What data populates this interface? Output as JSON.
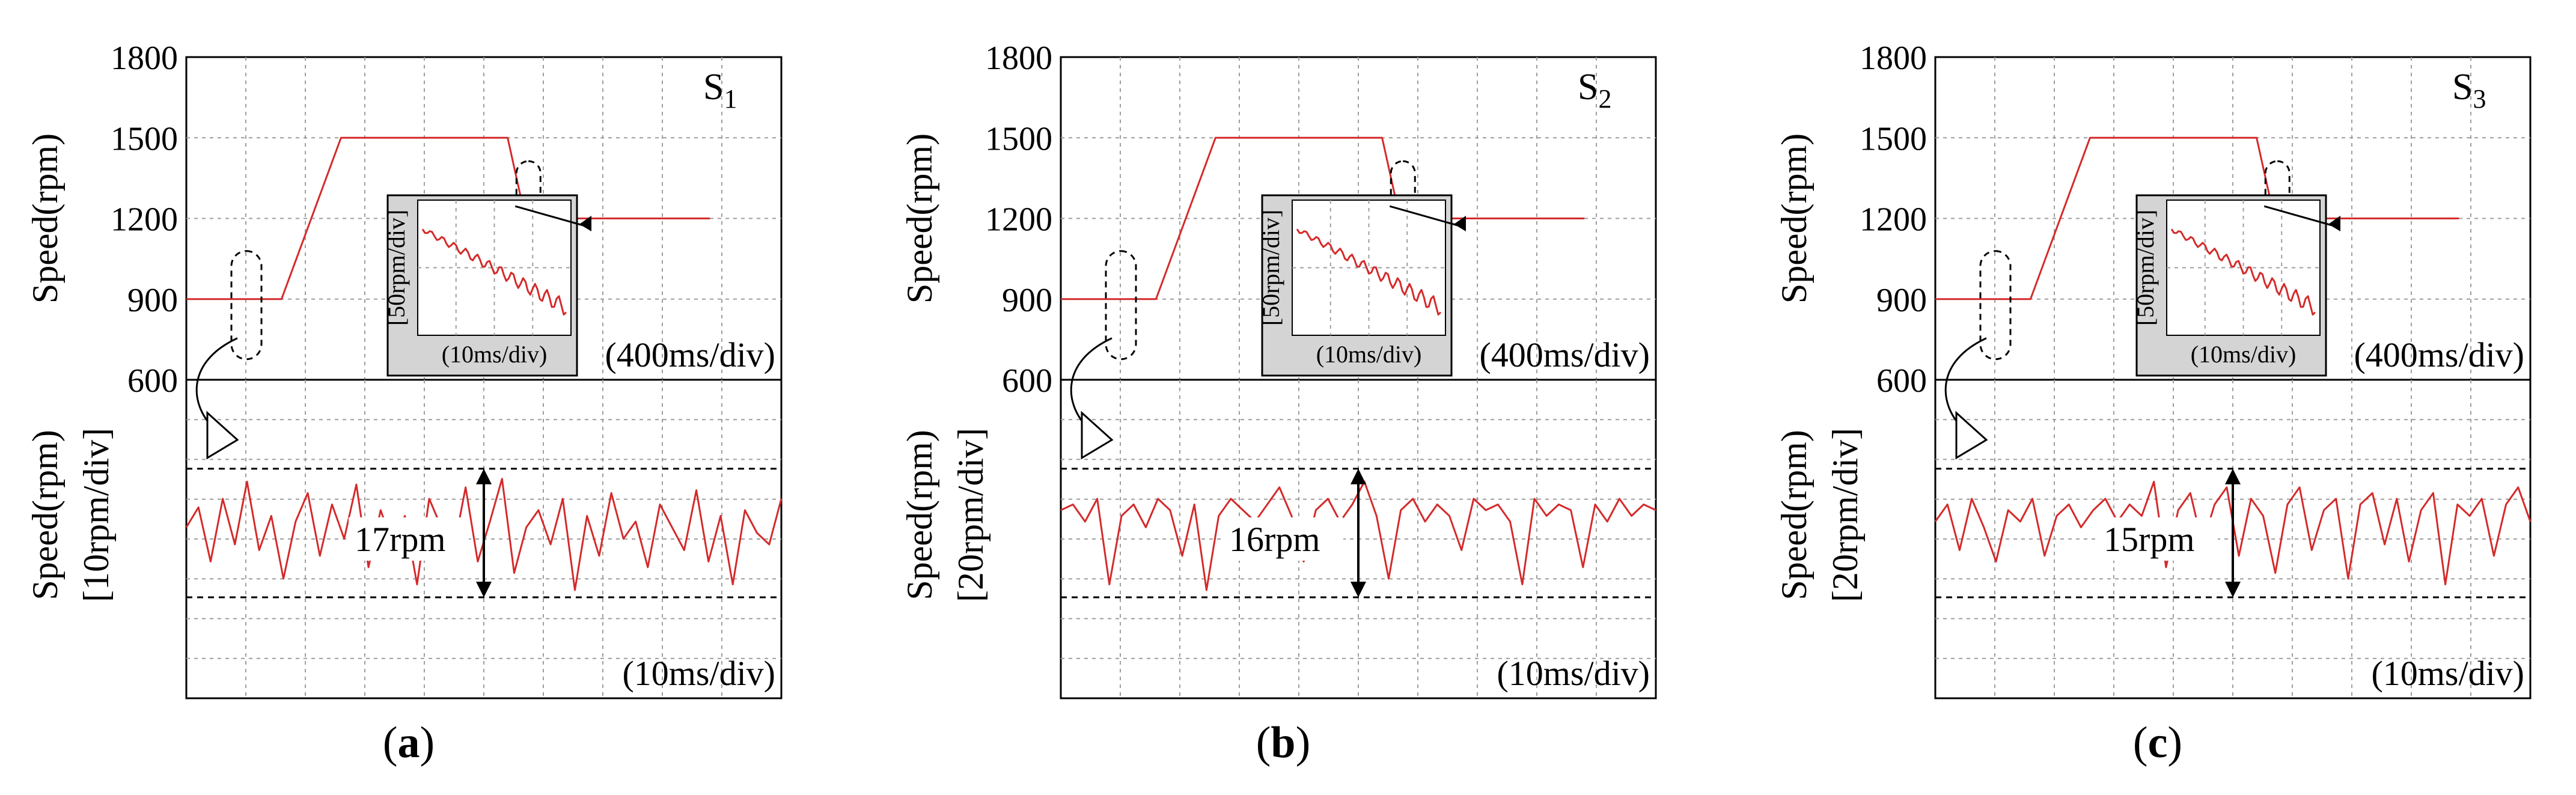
{
  "chart_data": [
    {
      "panel": "a",
      "caption_letter": "a",
      "sensor_label": "S",
      "sensor_sub": "1",
      "type": "line",
      "top": {
        "ylabel": "Speed(rpm)",
        "yticks": [
          "1800",
          "1500",
          "1200",
          "900",
          "600"
        ],
        "ylim": [
          600,
          1800
        ],
        "time_scale": "(400ms/div)",
        "segments": [
          [
            0,
            900
          ],
          [
            1.6,
            900
          ],
          [
            2.6,
            1500
          ],
          [
            5.4,
            1500
          ],
          [
            5.7,
            1200
          ],
          [
            8.8,
            1200
          ]
        ],
        "inset_ylabel": "[50rpm/div]",
        "inset_xlabel": "(10ms/div)"
      },
      "bottom": {
        "ylabel_1": "Speed(rpm)",
        "ylabel_2": "[10rpm/div]",
        "time_scale": "(10ms/div)",
        "ripple_label": "17rpm",
        "ripple_rpm": 17,
        "trace": [
          0.1,
          0.45,
          -0.5,
          0.6,
          -0.2,
          0.9,
          -0.3,
          0.3,
          -0.8,
          0.2,
          0.7,
          -0.4,
          0.5,
          -0.1,
          0.85,
          -0.6,
          0.4,
          -0.2,
          0.3,
          -0.9,
          0.6,
          0.1,
          -0.3,
          0.8,
          -0.5,
          0.2,
          0.95,
          -0.7,
          0.1,
          0.4,
          -0.2,
          0.6,
          -1.0,
          0.3,
          -0.4,
          0.7,
          -0.1,
          0.2,
          -0.6,
          0.5,
          0.1,
          -0.3,
          0.75,
          -0.5,
          0.3,
          -0.9,
          0.4,
          0.0,
          -0.2,
          0.6
        ]
      }
    },
    {
      "panel": "b",
      "caption_letter": "b",
      "sensor_label": "S",
      "sensor_sub": "2",
      "type": "line",
      "top": {
        "ylabel": "Speed(rpm)",
        "yticks": [
          "1800",
          "1500",
          "1200",
          "900",
          "600"
        ],
        "ylim": [
          600,
          1800
        ],
        "time_scale": "(400ms/div)",
        "segments": [
          [
            0,
            900
          ],
          [
            1.6,
            900
          ],
          [
            2.6,
            1500
          ],
          [
            5.4,
            1500
          ],
          [
            5.7,
            1200
          ],
          [
            8.8,
            1200
          ]
        ],
        "inset_ylabel": "[50rpm/div]",
        "inset_xlabel": "(10ms/div)"
      },
      "bottom": {
        "ylabel_1": "Speed(rpm)",
        "ylabel_2": "[20rpm/div]",
        "time_scale": "(10ms/div)",
        "ripple_label": "16rpm",
        "ripple_rpm": 16,
        "trace": [
          0.4,
          0.5,
          0.2,
          0.6,
          -0.9,
          0.3,
          0.5,
          0.1,
          0.6,
          0.4,
          -0.4,
          0.5,
          -1.0,
          0.3,
          0.6,
          0.4,
          0.2,
          0.5,
          0.8,
          0.3,
          -0.5,
          0.4,
          0.6,
          0.2,
          0.5,
          0.9,
          0.3,
          -0.8,
          0.4,
          0.6,
          0.2,
          0.5,
          0.3,
          -0.3,
          0.6,
          0.4,
          0.5,
          0.2,
          -0.9,
          0.6,
          0.3,
          0.5,
          0.4,
          -0.6,
          0.5,
          0.2,
          0.6,
          0.3,
          0.5,
          0.4
        ]
      }
    },
    {
      "panel": "c",
      "caption_letter": "c",
      "sensor_label": "S",
      "sensor_sub": "3",
      "type": "line",
      "top": {
        "ylabel": "Speed(rpm)",
        "yticks": [
          "1800",
          "1500",
          "1200",
          "900",
          "600"
        ],
        "ylim": [
          600,
          1800
        ],
        "time_scale": "(400ms/div)",
        "segments": [
          [
            0,
            900
          ],
          [
            1.6,
            900
          ],
          [
            2.6,
            1500
          ],
          [
            5.4,
            1500
          ],
          [
            5.7,
            1200
          ],
          [
            8.8,
            1200
          ]
        ],
        "inset_ylabel": "[50rpm/div]",
        "inset_xlabel": "(10ms/div)"
      },
      "bottom": {
        "ylabel_1": "Speed(rpm)",
        "ylabel_2": "[20rpm/div]",
        "time_scale": "(10ms/div)",
        "ripple_label": "15rpm",
        "ripple_rpm": 15,
        "trace": [
          0.2,
          0.5,
          -0.3,
          0.6,
          0.1,
          -0.5,
          0.4,
          0.2,
          0.6,
          -0.4,
          0.3,
          0.5,
          0.1,
          0.4,
          0.6,
          0.2,
          0.5,
          0.3,
          0.9,
          -0.6,
          0.4,
          0.7,
          -0.2,
          0.5,
          0.8,
          -0.4,
          0.6,
          0.3,
          -0.7,
          0.5,
          0.8,
          -0.3,
          0.4,
          0.6,
          -0.8,
          0.5,
          0.7,
          -0.2,
          0.6,
          -0.5,
          0.4,
          0.7,
          -0.9,
          0.5,
          0.3,
          0.6,
          -0.4,
          0.5,
          0.8,
          0.2
        ]
      }
    }
  ],
  "colors": {
    "trace": "#d42a2a",
    "inset_bg": "#d4d4d4"
  }
}
